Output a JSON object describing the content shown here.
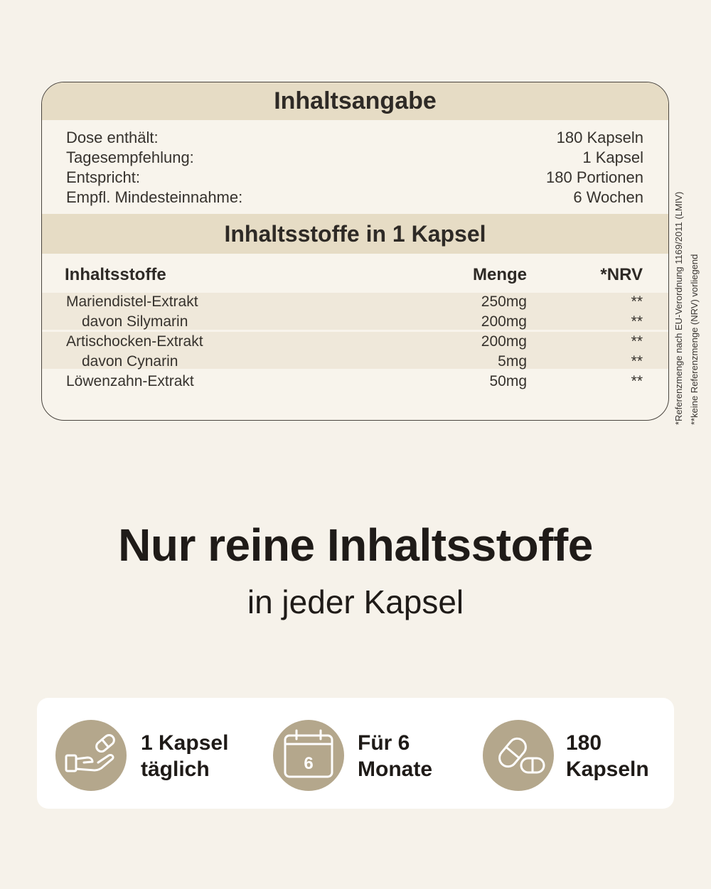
{
  "overview": {
    "title": "Inhaltsangabe",
    "rows": [
      {
        "label": "Dose enthält:",
        "value": "180 Kapseln"
      },
      {
        "label": "Tagesempfehlung:",
        "value": "1 Kapsel"
      },
      {
        "label": "Entspricht:",
        "value": "180 Portionen"
      },
      {
        "label": "Empfl. Mindesteinnahme:",
        "value": "6 Wochen"
      }
    ]
  },
  "ingredients": {
    "title": "Inhaltsstoffe in 1 Kapsel",
    "headers": {
      "name": "Inhaltsstoffe",
      "amount": "Menge",
      "nrv": "*NRV"
    },
    "rows": [
      {
        "name": "Mariendistel-Extrakt",
        "amount": "250mg",
        "nrv": "**"
      },
      {
        "name": "davon Silymarin",
        "amount": "200mg",
        "nrv": "**"
      },
      {
        "name": "Artischocken-Extrakt",
        "amount": "200mg",
        "nrv": "**"
      },
      {
        "name": "davon Cynarin",
        "amount": "5mg",
        "nrv": "**"
      },
      {
        "name": "Löwenzahn-Extrakt",
        "amount": "50mg",
        "nrv": "**"
      }
    ]
  },
  "footnotes": {
    "line1": "*Referenzmenge nach EU-Verordnung 1169/2011 (LMIV)",
    "line2": "**keine Referenzmenge (NRV) vorliegend"
  },
  "hero": {
    "title": "Nur reine Inhaltsstoffe",
    "subtitle": "in jeder Kapsel"
  },
  "features": [
    {
      "icon": "hand-capsule-icon",
      "line1": "1 Kapsel",
      "line2": "täglich"
    },
    {
      "icon": "calendar-icon",
      "calendar_number": "6",
      "line1": "Für 6",
      "line2": "Monate"
    },
    {
      "icon": "capsules-icon",
      "line1": "180",
      "line2": "Kapseln"
    }
  ],
  "colors": {
    "background": "#f6f2ea",
    "header_band": "#e6dcc5",
    "row_band": "#efe8da",
    "icon_circle": "#b4a78c",
    "text": "#1f1b18"
  }
}
